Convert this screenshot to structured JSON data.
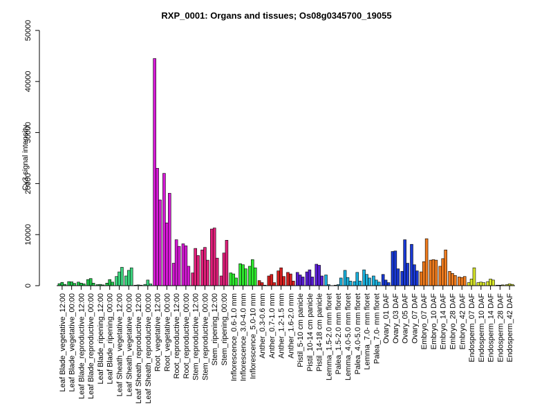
{
  "chart_data": {
    "type": "bar",
    "title": "RXP_0001: Organs and tissues; Os08g0345700_19055",
    "xlabel": "",
    "ylabel": "Cy3 signal intensity",
    "ylim": [
      0,
      50000
    ],
    "yticks": [
      0,
      10000,
      20000,
      30000,
      40000,
      50000
    ],
    "grid": false,
    "legend": "none",
    "bars_per_group": 3,
    "groups": [
      {
        "label": "Leaf Blade_vegetative_12:00",
        "color": "#22c34a",
        "values": [
          400,
          650,
          250
        ]
      },
      {
        "label": "Leaf Blade_vegetative_00:00",
        "color": "#22c34a",
        "values": [
          800,
          750,
          450
        ]
      },
      {
        "label": "Leaf Blade_reproductive_12:00",
        "color": "#22c34a",
        "values": [
          700,
          500,
          350
        ]
      },
      {
        "label": "Leaf Blade_reproductive_00:00",
        "color": "#22c34a",
        "values": [
          1200,
          1400,
          500
        ]
      },
      {
        "label": "Leaf Blade_ripening_12:00",
        "color": "#22c34a",
        "values": [
          200,
          250,
          150
        ]
      },
      {
        "label": "Leaf Blade_ripening_00:00",
        "color": "#22c34a",
        "values": [
          500,
          1200,
          700
        ]
      },
      {
        "label": "Leaf Sheath_vegetative_12:00",
        "color": "#3bd27c",
        "values": [
          1800,
          2700,
          3600
        ]
      },
      {
        "label": "Leaf Sheath_vegetative_00:00",
        "color": "#3bd27c",
        "values": [
          1900,
          3000,
          3500
        ]
      },
      {
        "label": "Leaf Sheath_reproductive_12:00",
        "color": "#3bd27c",
        "values": [
          100,
          150,
          100
        ]
      },
      {
        "label": "Leaf Sheath_reproductive_00:00",
        "color": "#3bd27c",
        "values": [
          250,
          1100,
          350
        ]
      },
      {
        "label": "Root_vegetative_12:00",
        "color": "#d41ad4",
        "values": [
          44500,
          23000,
          16800
        ]
      },
      {
        "label": "Root_vegetative_00:00",
        "color": "#d41ad4",
        "values": [
          22000,
          12300,
          18100
        ]
      },
      {
        "label": "Root_reproductive_12:00",
        "color": "#d41ad4",
        "values": [
          4400,
          9000,
          7700
        ]
      },
      {
        "label": "Root_reproductive_00:00",
        "color": "#d41ad4",
        "values": [
          8200,
          7800,
          3800
        ]
      },
      {
        "label": "Stem_reproductive_12:00",
        "color": "#e0207a",
        "values": [
          2500,
          7300,
          5900
        ]
      },
      {
        "label": "Stem_reproductive_00:00",
        "color": "#e0207a",
        "values": [
          7000,
          7500,
          5000
        ]
      },
      {
        "label": "Stem_ripening_12:00",
        "color": "#e0207a",
        "values": [
          11100,
          11300,
          5400
        ]
      },
      {
        "label": "Stem_ripening_00:00",
        "color": "#e0207a",
        "values": [
          1900,
          6400,
          8900
        ]
      },
      {
        "label": "Inflorescence_0.6-1.0 mm",
        "color": "#2ee62e",
        "values": [
          2500,
          2300,
          1500
        ]
      },
      {
        "label": "Inflorescence_3.0-4.0 mm",
        "color": "#2ee62e",
        "values": [
          4300,
          4100,
          3300
        ]
      },
      {
        "label": "Inflorescence_5.0-10 mm",
        "color": "#2ee62e",
        "values": [
          3800,
          5100,
          3500
        ]
      },
      {
        "label": "Anther_0.3-0.6 mm",
        "color": "#d42020",
        "values": [
          1000,
          600,
          100
        ]
      },
      {
        "label": "Anther_0.7-1.0 mm",
        "color": "#d42020",
        "values": [
          1900,
          2200,
          600
        ]
      },
      {
        "label": "Anther_1.2-1.5 mm",
        "color": "#d42020",
        "values": [
          2900,
          3500,
          1800
        ]
      },
      {
        "label": "Anther_1.6-2.0 mm",
        "color": "#d42020",
        "values": [
          2600,
          2300,
          900
        ]
      },
      {
        "label": "Pistil_5-10 cm panicle",
        "color": "#5a1ed4",
        "values": [
          2600,
          2100,
          1700
        ]
      },
      {
        "label": "Pistil_10-14 cm panicle",
        "color": "#5a1ed4",
        "values": [
          2700,
          3100,
          1700
        ]
      },
      {
        "label": "Pistil_14-18 cm panicle",
        "color": "#5a1ed4",
        "values": [
          4200,
          4000,
          1900
        ]
      },
      {
        "label": "Lemma_1.5-2.0 mm floret",
        "color": "#1ab0dc",
        "values": [
          2100,
          200,
          0
        ]
      },
      {
        "label": "Palea_1.5-2.0 mm floret",
        "color": "#1ab0dc",
        "values": [
          100,
          200,
          1500
        ]
      },
      {
        "label": "Lemma_4.0-5.0 mm floret",
        "color": "#1ab0dc",
        "values": [
          3000,
          1600,
          900
        ]
      },
      {
        "label": "Palea_4.0-5.0 mm floret",
        "color": "#1ab0dc",
        "values": [
          800,
          2600,
          900
        ]
      },
      {
        "label": "Lemma_7.0- mm floret",
        "color": "#1ab0dc",
        "values": [
          3100,
          2200,
          1500
        ]
      },
      {
        "label": "Palea_7.0- mm floret",
        "color": "#1ab0dc",
        "values": [
          1900,
          1100,
          700
        ]
      },
      {
        "label": "Ovary_01 DAF",
        "color": "#1a3ad4",
        "values": [
          2200,
          1100,
          600
        ]
      },
      {
        "label": "Ovary_03 DAF",
        "color": "#1a3ad4",
        "values": [
          6700,
          6800,
          3300
        ]
      },
      {
        "label": "Ovary_05 DAF",
        "color": "#1a3ad4",
        "values": [
          2800,
          9000,
          4400
        ]
      },
      {
        "label": "Ovary_07 DAF",
        "color": "#1a3ad4",
        "values": [
          8100,
          4100,
          2900
        ]
      },
      {
        "label": "Embryo_07 DAF",
        "color": "#f07c1e",
        "values": [
          2700,
          4700,
          9200
        ]
      },
      {
        "label": "Embryo_10 DAF",
        "color": "#f07c1e",
        "values": [
          5000,
          5100,
          5000
        ]
      },
      {
        "label": "Embryo_14 DAF",
        "color": "#f07c1e",
        "values": [
          3800,
          5300,
          7000
        ]
      },
      {
        "label": "Embryo_28 DAF",
        "color": "#f07c1e",
        "values": [
          2800,
          2400,
          2000
        ]
      },
      {
        "label": "Embryo_42 DAF",
        "color": "#f07c1e",
        "values": [
          1700,
          1600,
          1800
        ]
      },
      {
        "label": "Endosperm_07 DAF",
        "color": "#d8e62a",
        "values": [
          600,
          1300,
          3500
        ]
      },
      {
        "label": "Endosperm_10 DAF",
        "color": "#d8e62a",
        "values": [
          600,
          700,
          600
        ]
      },
      {
        "label": "Endosperm_14 DAF",
        "color": "#d8e62a",
        "values": [
          800,
          1300,
          1100
        ]
      },
      {
        "label": "Endosperm_28 DAF",
        "color": "#d8e62a",
        "values": [
          100,
          100,
          150
        ]
      },
      {
        "label": "Endosperm_42 DAF",
        "color": "#d8e62a",
        "values": [
          200,
          350,
          250
        ]
      }
    ]
  }
}
